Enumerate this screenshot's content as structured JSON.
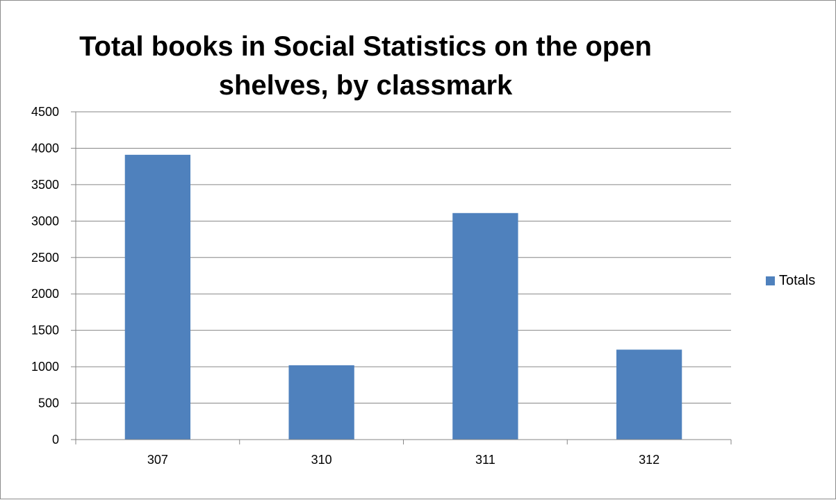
{
  "chart_data": {
    "type": "bar",
    "title": "Total books in Social Statistics on the open shelves, by classmark",
    "title_lines": [
      "Total books in Social Statistics on the open",
      "shelves, by classmark"
    ],
    "categories": [
      "307",
      "310",
      "311",
      "312"
    ],
    "series": [
      {
        "name": "Totals",
        "values": [
          3910,
          1020,
          3110,
          1235
        ],
        "color": "#4f81bd"
      }
    ],
    "ylim": [
      0,
      4500
    ],
    "yticks": [
      0,
      500,
      1000,
      1500,
      2000,
      2500,
      3000,
      3500,
      4000,
      4500
    ],
    "grid": true,
    "legend": "right",
    "xlabel": "",
    "ylabel": ""
  }
}
